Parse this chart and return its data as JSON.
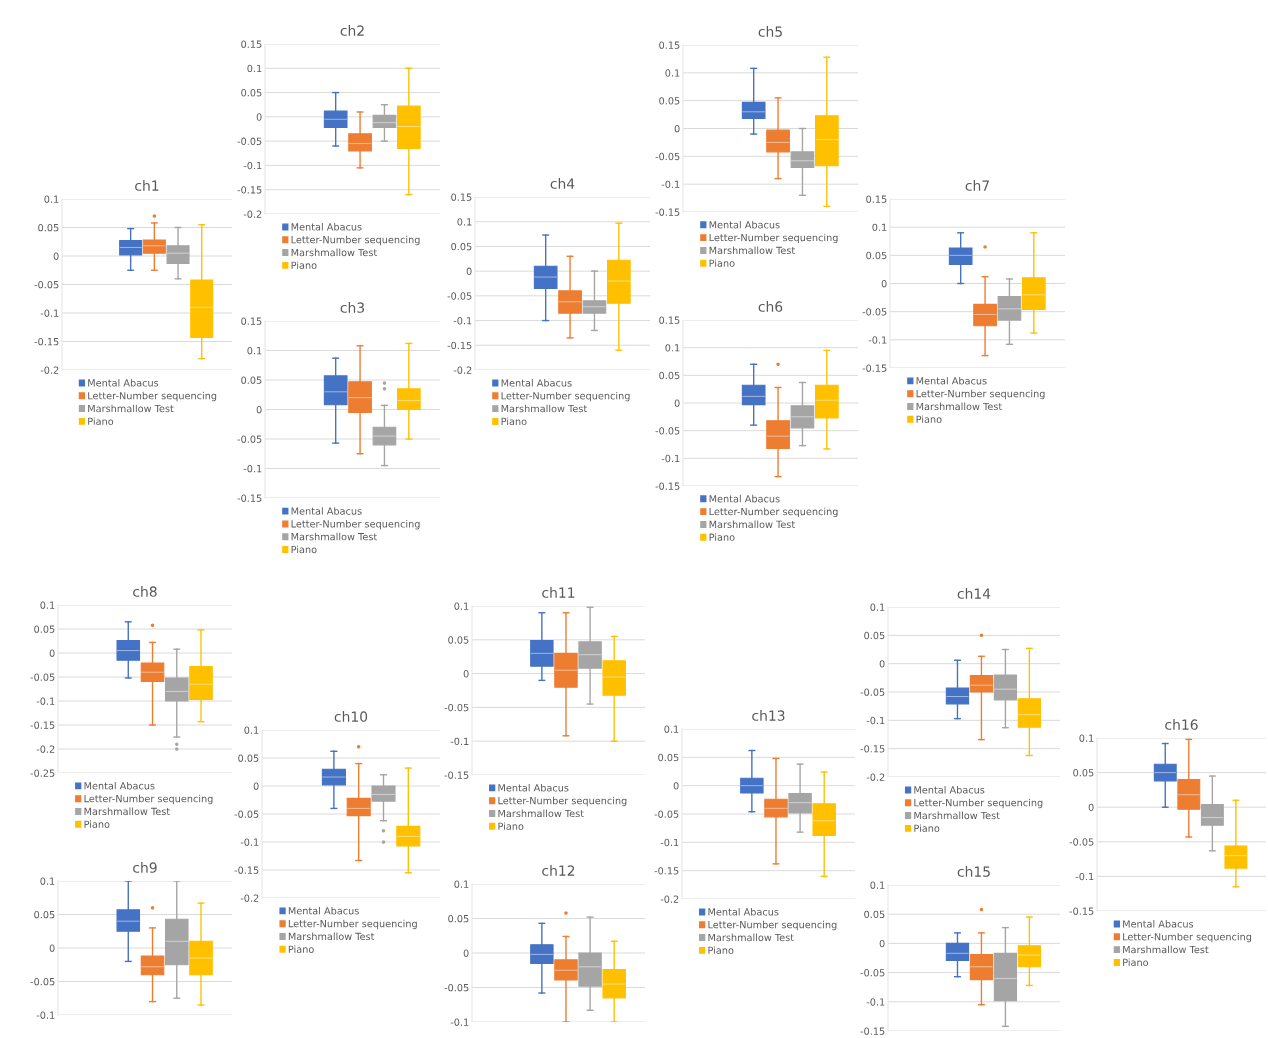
{
  "chart_data": [
    {
      "type": "box",
      "title": "ch1",
      "categories": [
        null
      ],
      "ylim": [
        -0.2,
        0.1
      ],
      "yticks": [
        -0.2,
        -0.15,
        -0.1,
        -0.05,
        0,
        0.05,
        0.1
      ],
      "grid": "y",
      "legend": "bottom",
      "tick_labels": "y",
      "series": [
        {
          "name": "Mental Abacus",
          "color": "#4472c4",
          "boxes": [
            {
              "low": -0.025,
              "q1": 0.002,
              "median": 0.015,
              "q3": 0.027,
              "high": 0.048
            }
          ]
        },
        {
          "name": "Letter-Number sequencing",
          "color": "#ed7d31",
          "boxes": [
            {
              "low": -0.025,
              "q1": 0.005,
              "median": 0.018,
              "q3": 0.028,
              "high": 0.058,
              "outliers": [
                0.07
              ]
            }
          ]
        },
        {
          "name": "Marshmallow Test",
          "color": "#a5a5a5",
          "boxes": [
            {
              "low": -0.04,
              "q1": -0.013,
              "median": 0.005,
              "q3": 0.018,
              "high": 0.05
            }
          ]
        },
        {
          "name": "Piano",
          "color": "#ffc000",
          "boxes": [
            {
              "low": -0.18,
              "q1": -0.143,
              "median": -0.09,
              "q3": -0.042,
              "high": 0.055
            }
          ]
        }
      ]
    },
    {
      "type": "box",
      "title": "ch2",
      "categories": [
        null
      ],
      "ylim": [
        -0.2,
        0.15
      ],
      "yticks": [
        -0.2,
        -0.15,
        -0.1,
        -0.05,
        0,
        0.05,
        0.1,
        0.15
      ],
      "grid": "y",
      "legend": "bottom",
      "tick_labels": "y",
      "series": [
        {
          "name": "Mental Abacus",
          "color": "#4472c4",
          "boxes": [
            {
              "low": -0.06,
              "q1": -0.022,
              "median": -0.005,
              "q3": 0.012,
              "high": 0.05
            }
          ]
        },
        {
          "name": "Letter-Number sequencing",
          "color": "#ed7d31",
          "boxes": [
            {
              "low": -0.105,
              "q1": -0.07,
              "median": -0.055,
              "q3": -0.035,
              "high": 0.01
            }
          ]
        },
        {
          "name": "Marshmallow Test",
          "color": "#a5a5a5",
          "boxes": [
            {
              "low": -0.05,
              "q1": -0.022,
              "median": -0.012,
              "q3": 0.003,
              "high": 0.025
            }
          ]
        },
        {
          "name": "Piano",
          "color": "#ffc000",
          "boxes": [
            {
              "low": -0.16,
              "q1": -0.065,
              "median": -0.02,
              "q3": 0.022,
              "high": 0.1
            }
          ]
        }
      ]
    },
    {
      "type": "box",
      "title": "ch3",
      "categories": [
        null
      ],
      "ylim": [
        -0.15,
        0.15
      ],
      "yticks": [
        -0.15,
        -0.1,
        -0.05,
        0,
        0.05,
        0.1,
        0.15
      ],
      "grid": "y",
      "legend": "bottom",
      "tick_labels": "y",
      "series": [
        {
          "name": "Mental Abacus",
          "color": "#4472c4",
          "boxes": [
            {
              "low": -0.057,
              "q1": 0.008,
              "median": 0.03,
              "q3": 0.057,
              "high": 0.087
            }
          ]
        },
        {
          "name": "Letter-Number sequencing",
          "color": "#ed7d31",
          "boxes": [
            {
              "low": -0.075,
              "q1": -0.005,
              "median": 0.02,
              "q3": 0.047,
              "high": 0.108
            }
          ]
        },
        {
          "name": "Marshmallow Test",
          "color": "#a5a5a5",
          "boxes": [
            {
              "low": -0.095,
              "q1": -0.06,
              "median": -0.045,
              "q3": -0.03,
              "high": 0.007,
              "outliers": [
                0.035,
                0.045
              ]
            }
          ]
        },
        {
          "name": "Piano",
          "color": "#ffc000",
          "boxes": [
            {
              "low": -0.05,
              "q1": 0.0,
              "median": 0.015,
              "q3": 0.035,
              "high": 0.112
            }
          ]
        }
      ]
    },
    {
      "type": "box",
      "title": "ch4",
      "categories": [
        null
      ],
      "ylim": [
        -0.2,
        0.15
      ],
      "yticks": [
        -0.2,
        -0.15,
        -0.1,
        -0.05,
        0,
        0.05,
        0.1,
        0.15
      ],
      "grid": "y",
      "legend": "bottom",
      "tick_labels": "y",
      "series": [
        {
          "name": "Mental Abacus",
          "color": "#4472c4",
          "boxes": [
            {
              "low": -0.1,
              "q1": -0.035,
              "median": -0.012,
              "q3": 0.01,
              "high": 0.073
            }
          ]
        },
        {
          "name": "Letter-Number sequencing",
          "color": "#ed7d31",
          "boxes": [
            {
              "low": -0.135,
              "q1": -0.085,
              "median": -0.062,
              "q3": -0.04,
              "high": 0.03
            }
          ]
        },
        {
          "name": "Marshmallow Test",
          "color": "#a5a5a5",
          "boxes": [
            {
              "low": -0.12,
              "q1": -0.085,
              "median": -0.072,
              "q3": -0.06,
              "high": 0.0
            }
          ]
        },
        {
          "name": "Piano",
          "color": "#ffc000",
          "boxes": [
            {
              "low": -0.16,
              "q1": -0.065,
              "median": -0.02,
              "q3": 0.022,
              "high": 0.097
            }
          ]
        }
      ]
    },
    {
      "type": "box",
      "title": "ch5",
      "categories": [
        null
      ],
      "ylim": [
        -0.15,
        0.15
      ],
      "yticks": [
        -0.15,
        -0.1,
        -0.05,
        0,
        0.05,
        0.1,
        0.15
      ],
      "grid": "y",
      "legend": "bottom",
      "tick_labels": "y",
      "series": [
        {
          "name": "Mental Abacus",
          "color": "#4472c4",
          "boxes": [
            {
              "low": -0.01,
              "q1": 0.018,
              "median": 0.03,
              "q3": 0.047,
              "high": 0.108
            }
          ]
        },
        {
          "name": "Letter-Number sequencing",
          "color": "#ed7d31",
          "boxes": [
            {
              "low": -0.09,
              "q1": -0.042,
              "median": -0.025,
              "q3": -0.003,
              "high": 0.055
            }
          ]
        },
        {
          "name": "Marshmallow Test",
          "color": "#a5a5a5",
          "boxes": [
            {
              "low": -0.12,
              "q1": -0.07,
              "median": -0.058,
              "q3": -0.042,
              "high": 0.0
            }
          ]
        },
        {
          "name": "Piano",
          "color": "#ffc000",
          "boxes": [
            {
              "low": -0.14,
              "q1": -0.067,
              "median": -0.02,
              "q3": 0.023,
              "high": 0.128
            }
          ]
        }
      ]
    },
    {
      "type": "box",
      "title": "ch6",
      "categories": [
        null
      ],
      "ylim": [
        -0.15,
        0.15
      ],
      "yticks": [
        -0.15,
        -0.1,
        -0.05,
        0,
        0.05,
        0.1,
        0.15
      ],
      "grid": "y",
      "legend": "bottom",
      "tick_labels": "y",
      "series": [
        {
          "name": "Mental Abacus",
          "color": "#4472c4",
          "boxes": [
            {
              "low": -0.04,
              "q1": -0.003,
              "median": 0.012,
              "q3": 0.032,
              "high": 0.07
            }
          ]
        },
        {
          "name": "Letter-Number sequencing",
          "color": "#ed7d31",
          "boxes": [
            {
              "low": -0.133,
              "q1": -0.082,
              "median": -0.06,
              "q3": -0.032,
              "high": 0.028,
              "outliers": [
                0.07
              ]
            }
          ]
        },
        {
          "name": "Marshmallow Test",
          "color": "#a5a5a5",
          "boxes": [
            {
              "low": -0.077,
              "q1": -0.045,
              "median": -0.025,
              "q3": -0.005,
              "high": 0.037
            }
          ]
        },
        {
          "name": "Piano",
          "color": "#ffc000",
          "boxes": [
            {
              "low": -0.083,
              "q1": -0.027,
              "median": 0.005,
              "q3": 0.032,
              "high": 0.095
            }
          ]
        }
      ]
    },
    {
      "type": "box",
      "title": "ch7",
      "categories": [
        null
      ],
      "ylim": [
        -0.15,
        0.15
      ],
      "yticks": [
        -0.15,
        -0.1,
        -0.05,
        0,
        0.05,
        0.1,
        0.15
      ],
      "grid": "y",
      "legend": "bottom",
      "tick_labels": "y",
      "series": [
        {
          "name": "Mental Abacus",
          "color": "#4472c4",
          "boxes": [
            {
              "low": 0.0,
              "q1": 0.034,
              "median": 0.05,
              "q3": 0.063,
              "high": 0.09
            }
          ]
        },
        {
          "name": "Letter-Number sequencing",
          "color": "#ed7d31",
          "boxes": [
            {
              "low": -0.128,
              "q1": -0.075,
              "median": -0.055,
              "q3": -0.037,
              "high": 0.012,
              "outliers": [
                0.065
              ]
            }
          ]
        },
        {
          "name": "Marshmallow Test",
          "color": "#a5a5a5",
          "boxes": [
            {
              "low": -0.108,
              "q1": -0.065,
              "median": -0.045,
              "q3": -0.023,
              "high": 0.008
            }
          ]
        },
        {
          "name": "Piano",
          "color": "#ffc000",
          "boxes": [
            {
              "low": -0.088,
              "q1": -0.046,
              "median": -0.02,
              "q3": 0.01,
              "high": 0.09
            }
          ]
        }
      ]
    },
    {
      "type": "box",
      "title": "ch8",
      "categories": [
        null
      ],
      "ylim": [
        -0.25,
        0.1
      ],
      "yticks": [
        -0.25,
        -0.2,
        -0.15,
        -0.1,
        -0.05,
        0,
        0.05,
        0.1
      ],
      "grid": "y",
      "legend": "bottom",
      "tick_labels": "y",
      "series": [
        {
          "name": "Mental Abacus",
          "color": "#4472c4",
          "boxes": [
            {
              "low": -0.052,
              "q1": -0.015,
              "median": 0.005,
              "q3": 0.026,
              "high": 0.065
            }
          ]
        },
        {
          "name": "Letter-Number sequencing",
          "color": "#ed7d31",
          "boxes": [
            {
              "low": -0.15,
              "q1": -0.059,
              "median": -0.04,
              "q3": -0.021,
              "high": 0.022,
              "outliers": [
                0.058
              ]
            }
          ]
        },
        {
          "name": "Marshmallow Test",
          "color": "#a5a5a5",
          "boxes": [
            {
              "low": -0.175,
              "q1": -0.1,
              "median": -0.08,
              "q3": -0.052,
              "high": 0.008,
              "outliers": [
                -0.19,
                -0.2
              ]
            }
          ]
        },
        {
          "name": "Piano",
          "color": "#ffc000",
          "boxes": [
            {
              "low": -0.143,
              "q1": -0.097,
              "median": -0.065,
              "q3": -0.028,
              "high": 0.048
            }
          ]
        }
      ]
    },
    {
      "type": "box",
      "title": "ch9",
      "categories": [
        null
      ],
      "ylim": [
        -0.1,
        0.1
      ],
      "yticks": [
        -0.1,
        -0.05,
        0,
        0.05,
        0.1
      ],
      "grid": "y",
      "tick_labels": "y",
      "series": [
        {
          "color": "#4472c4",
          "boxes": [
            {
              "low": -0.02,
              "q1": 0.025,
              "median": 0.04,
              "q3": 0.057,
              "high": 0.1
            }
          ]
        },
        {
          "color": "#ed7d31",
          "boxes": [
            {
              "low": -0.08,
              "q1": -0.04,
              "median": -0.028,
              "q3": -0.012,
              "high": 0.03,
              "outliers": [
                0.06
              ]
            }
          ]
        },
        {
          "color": "#a5a5a5",
          "boxes": [
            {
              "low": -0.075,
              "q1": -0.025,
              "median": 0.01,
              "q3": 0.043,
              "high": 0.1
            }
          ]
        },
        {
          "color": "#ffc000",
          "boxes": [
            {
              "low": -0.085,
              "q1": -0.04,
              "median": -0.015,
              "q3": 0.01,
              "high": 0.067
            }
          ]
        }
      ]
    },
    {
      "type": "box",
      "title": "ch10",
      "categories": [
        null
      ],
      "ylim": [
        -0.2,
        0.1
      ],
      "yticks": [
        -0.2,
        -0.15,
        -0.1,
        -0.05,
        0,
        0.05,
        0.1
      ],
      "grid": "y",
      "legend": "bottom",
      "tick_labels": "y",
      "series": [
        {
          "name": "Mental Abacus",
          "color": "#4472c4",
          "boxes": [
            {
              "low": -0.04,
              "q1": 0.002,
              "median": 0.016,
              "q3": 0.03,
              "high": 0.062
            }
          ]
        },
        {
          "name": "Letter-Number sequencing",
          "color": "#ed7d31",
          "boxes": [
            {
              "low": -0.133,
              "q1": -0.053,
              "median": -0.04,
              "q3": -0.022,
              "high": 0.04,
              "outliers": [
                0.07
              ]
            }
          ]
        },
        {
          "name": "Marshmallow Test",
          "color": "#a5a5a5",
          "boxes": [
            {
              "low": -0.062,
              "q1": -0.027,
              "median": -0.015,
              "q3": 0.0,
              "high": 0.02,
              "outliers": [
                -0.08,
                -0.1
              ]
            }
          ]
        },
        {
          "name": "Piano",
          "color": "#ffc000",
          "boxes": [
            {
              "low": -0.155,
              "q1": -0.107,
              "median": -0.09,
              "q3": -0.072,
              "high": 0.032
            }
          ]
        }
      ]
    },
    {
      "type": "box",
      "title": "ch11",
      "categories": [
        null
      ],
      "ylim": [
        -0.15,
        0.1
      ],
      "yticks": [
        -0.15,
        -0.1,
        -0.05,
        0,
        0.05,
        0.1
      ],
      "grid": "y",
      "legend": "bottom",
      "tick_labels": "y",
      "series": [
        {
          "name": "Mental Abacus",
          "color": "#4472c4",
          "boxes": [
            {
              "low": -0.01,
              "q1": 0.011,
              "median": 0.03,
              "q3": 0.049,
              "high": 0.09
            }
          ]
        },
        {
          "name": "Letter-Number sequencing",
          "color": "#ed7d31",
          "boxes": [
            {
              "low": -0.092,
              "q1": -0.02,
              "median": 0.005,
              "q3": 0.03,
              "high": 0.09
            }
          ]
        },
        {
          "name": "Marshmallow Test",
          "color": "#a5a5a5",
          "boxes": [
            {
              "low": -0.045,
              "q1": 0.008,
              "median": 0.028,
              "q3": 0.047,
              "high": 0.098
            }
          ]
        },
        {
          "name": "Piano",
          "color": "#ffc000",
          "boxes": [
            {
              "low": -0.1,
              "q1": -0.032,
              "median": -0.005,
              "q3": 0.019,
              "high": 0.055
            }
          ]
        }
      ]
    },
    {
      "type": "box",
      "title": "ch12",
      "categories": [
        null
      ],
      "ylim": [
        -0.1,
        0.1
      ],
      "yticks": [
        -0.1,
        -0.05,
        0,
        0.05,
        0.1
      ],
      "grid": "y",
      "tick_labels": "y",
      "series": [
        {
          "color": "#4472c4",
          "boxes": [
            {
              "low": -0.058,
              "q1": -0.015,
              "median": -0.002,
              "q3": 0.012,
              "high": 0.043
            }
          ]
        },
        {
          "color": "#ed7d31",
          "boxes": [
            {
              "low": -0.1,
              "q1": -0.039,
              "median": -0.025,
              "q3": -0.01,
              "high": 0.024,
              "outliers": [
                0.058
              ]
            }
          ]
        },
        {
          "color": "#a5a5a5",
          "boxes": [
            {
              "low": -0.083,
              "q1": -0.048,
              "median": -0.02,
              "q3": 0.0,
              "high": 0.052
            }
          ]
        },
        {
          "color": "#ffc000",
          "boxes": [
            {
              "low": -0.1,
              "q1": -0.065,
              "median": -0.045,
              "q3": -0.024,
              "high": 0.017
            }
          ]
        }
      ]
    },
    {
      "type": "box",
      "title": "ch13",
      "categories": [
        null
      ],
      "ylim": [
        -0.2,
        0.1
      ],
      "yticks": [
        -0.2,
        -0.15,
        -0.1,
        -0.05,
        0,
        0.05,
        0.1
      ],
      "grid": "y",
      "legend": "bottom",
      "tick_labels": "y",
      "series": [
        {
          "name": "Mental Abacus",
          "color": "#4472c4",
          "boxes": [
            {
              "low": -0.046,
              "q1": -0.013,
              "median": 0.0,
              "q3": 0.013,
              "high": 0.062
            }
          ]
        },
        {
          "name": "Letter-Number sequencing",
          "color": "#ed7d31",
          "boxes": [
            {
              "low": -0.138,
              "q1": -0.055,
              "median": -0.04,
              "q3": -0.024,
              "high": 0.048
            }
          ]
        },
        {
          "name": "Marshmallow Test",
          "color": "#a5a5a5",
          "boxes": [
            {
              "low": -0.082,
              "q1": -0.048,
              "median": -0.03,
              "q3": -0.014,
              "high": 0.038
            }
          ]
        },
        {
          "name": "Piano",
          "color": "#ffc000",
          "boxes": [
            {
              "low": -0.16,
              "q1": -0.088,
              "median": -0.062,
              "q3": -0.032,
              "high": 0.024
            }
          ]
        }
      ]
    },
    {
      "type": "box",
      "title": "ch14",
      "categories": [
        null
      ],
      "ylim": [
        -0.2,
        0.1
      ],
      "yticks": [
        -0.2,
        -0.15,
        -0.1,
        -0.05,
        0,
        0.05,
        0.1
      ],
      "grid": "y",
      "legend": "bottom",
      "tick_labels": "y",
      "series": [
        {
          "name": "Mental Abacus",
          "color": "#4472c4",
          "boxes": [
            {
              "low": -0.097,
              "q1": -0.071,
              "median": -0.058,
              "q3": -0.043,
              "high": 0.006
            }
          ]
        },
        {
          "name": "Letter-Number sequencing",
          "color": "#ed7d31",
          "boxes": [
            {
              "low": -0.134,
              "q1": -0.05,
              "median": -0.038,
              "q3": -0.021,
              "high": 0.013,
              "outliers": [
                0.05
              ]
            }
          ]
        },
        {
          "name": "Marshmallow Test",
          "color": "#a5a5a5",
          "boxes": [
            {
              "low": -0.113,
              "q1": -0.064,
              "median": -0.045,
              "q3": -0.02,
              "high": 0.025
            }
          ]
        },
        {
          "name": "Piano",
          "color": "#ffc000",
          "boxes": [
            {
              "low": -0.162,
              "q1": -0.112,
              "median": -0.09,
              "q3": -0.062,
              "high": 0.027
            }
          ]
        }
      ]
    },
    {
      "type": "box",
      "title": "ch15",
      "categories": [
        null
      ],
      "ylim": [
        -0.15,
        0.1
      ],
      "yticks": [
        -0.15,
        -0.1,
        -0.05,
        0,
        0.05,
        0.1
      ],
      "grid": "y",
      "tick_labels": "y",
      "series": [
        {
          "color": "#4472c4",
          "boxes": [
            {
              "low": -0.057,
              "q1": -0.029,
              "median": -0.017,
              "q3": 0.0,
              "high": 0.018
            }
          ]
        },
        {
          "color": "#ed7d31",
          "boxes": [
            {
              "low": -0.105,
              "q1": -0.062,
              "median": -0.04,
              "q3": -0.019,
              "high": 0.018,
              "outliers": [
                0.058
              ]
            }
          ]
        },
        {
          "color": "#a5a5a5",
          "boxes": [
            {
              "low": -0.142,
              "q1": -0.098,
              "median": -0.06,
              "q3": -0.017,
              "high": 0.027
            }
          ]
        },
        {
          "color": "#ffc000",
          "boxes": [
            {
              "low": -0.072,
              "q1": -0.04,
              "median": -0.02,
              "q3": -0.004,
              "high": 0.045
            }
          ]
        }
      ]
    },
    {
      "type": "box",
      "title": "ch16",
      "categories": [
        null
      ],
      "ylim": [
        -0.15,
        0.1
      ],
      "yticks": [
        -0.15,
        -0.1,
        -0.05,
        0,
        0.05,
        0.1
      ],
      "grid": "y",
      "legend": "bottom",
      "tick_labels": "y",
      "series": [
        {
          "name": "Mental Abacus",
          "color": "#4472c4",
          "boxes": [
            {
              "low": 0.0,
              "q1": 0.038,
              "median": 0.05,
              "q3": 0.062,
              "high": 0.092
            }
          ]
        },
        {
          "name": "Letter-Number sequencing",
          "color": "#ed7d31",
          "boxes": [
            {
              "low": -0.043,
              "q1": -0.003,
              "median": 0.018,
              "q3": 0.04,
              "high": 0.098
            }
          ]
        },
        {
          "name": "Marshmallow Test",
          "color": "#a5a5a5",
          "boxes": [
            {
              "low": -0.063,
              "q1": -0.026,
              "median": -0.015,
              "q3": 0.004,
              "high": 0.045
            }
          ]
        },
        {
          "name": "Piano",
          "color": "#ffc000",
          "boxes": [
            {
              "low": -0.115,
              "q1": -0.088,
              "median": -0.07,
              "q3": -0.056,
              "high": 0.01
            }
          ]
        }
      ]
    }
  ]
}
